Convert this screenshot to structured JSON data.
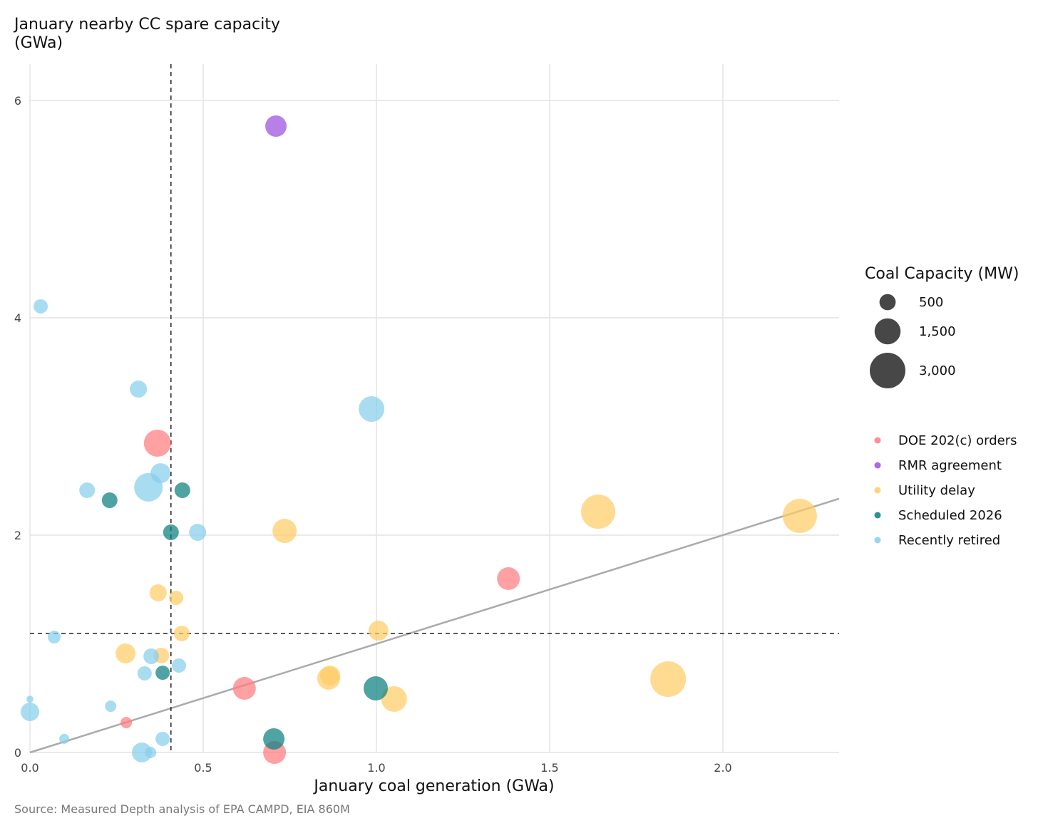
{
  "chart_data": {
    "type": "scatter",
    "title": "January nearby CC spare capacity",
    "title_line2": "(GWa)",
    "xlabel": "January coal generation (GWa)",
    "ylabel": "January nearby CC spare capacity (GWa)",
    "source": "Source: Measured Depth analysis of EPA CAMPD, EIA 860M",
    "xlim": [
      0,
      2.335
    ],
    "ylim": [
      0,
      6.33
    ],
    "x_ticks": [
      0,
      0.5,
      1.0,
      1.5,
      2.0
    ],
    "x_tick_labels": [
      "0.0",
      "0.5",
      "1.0",
      "1.5",
      "2.0"
    ],
    "y_ticks": [
      0,
      2,
      4,
      6
    ],
    "y_tick_labels": [
      "0",
      "2",
      "4",
      "6"
    ],
    "grid": true,
    "reference_lines": {
      "vertical_x": 0.407,
      "horizontal_y": 1.095,
      "diagonal": "y = x"
    },
    "size_legend": {
      "title": "Coal Capacity (MW)",
      "values": [
        500,
        1500,
        3000
      ],
      "labels": [
        "500",
        "1,500",
        "3,000"
      ]
    },
    "legend_placement": "right",
    "series": [
      {
        "name": "DOE 202(c) orders",
        "color": "#FF7B80",
        "points": [
          [
            0.368,
            2.846,
            1640
          ],
          [
            1.381,
            1.6,
            1111
          ],
          [
            0.619,
            0.59,
            1111
          ],
          [
            0.278,
            0.275,
            204
          ],
          [
            0.706,
            0.0,
            1111
          ]
        ]
      },
      {
        "name": "RMR agreement",
        "color": "#9B4FE0",
        "points": [
          [
            0.71,
            5.764,
            958
          ]
        ]
      },
      {
        "name": "Utility delay",
        "color": "#FFCC66",
        "points": [
          [
            1.64,
            2.216,
            2744
          ],
          [
            2.222,
            2.177,
            2744
          ],
          [
            0.735,
            2.039,
            1276
          ],
          [
            0.37,
            1.469,
            567
          ],
          [
            0.422,
            1.423,
            363
          ],
          [
            0.438,
            1.095,
            459
          ],
          [
            1.006,
            1.121,
            816
          ],
          [
            0.276,
            0.911,
            816
          ],
          [
            0.379,
            0.892,
            459
          ],
          [
            0.862,
            0.682,
            1111
          ],
          [
            0.866,
            0.708,
            816
          ],
          [
            1.051,
            0.492,
            1451
          ],
          [
            1.842,
            0.675,
            3000
          ]
        ]
      },
      {
        "name": "Scheduled 2026",
        "color": "#0B7F7F",
        "points": [
          [
            0.23,
            2.321,
            459
          ],
          [
            0.44,
            2.413,
            459
          ],
          [
            0.407,
            2.026,
            459
          ],
          [
            0.383,
            0.734,
            363
          ],
          [
            0.998,
            0.59,
            1276
          ],
          [
            0.704,
            0.125,
            958
          ]
        ]
      },
      {
        "name": "Recently retired",
        "color": "#87CEEB",
        "points": [
          [
            0.031,
            4.105,
            363
          ],
          [
            0.313,
            3.344,
            567
          ],
          [
            0.986,
            3.161,
            1451
          ],
          [
            0.377,
            2.57,
            816
          ],
          [
            0.342,
            2.44,
            1837
          ],
          [
            0.165,
            2.413,
            459
          ],
          [
            0.484,
            2.026,
            567
          ],
          [
            0.07,
            1.062,
            278
          ],
          [
            0.35,
            0.885,
            459
          ],
          [
            0.331,
            0.728,
            363
          ],
          [
            0.43,
            0.8,
            363
          ],
          [
            0.233,
            0.426,
            204
          ],
          [
            0.0,
            0.49,
            51
          ],
          [
            0.0,
            0.374,
            686
          ],
          [
            0.099,
            0.125,
            142
          ],
          [
            0.383,
            0.125,
            363
          ],
          [
            0.323,
            0.0,
            816
          ],
          [
            0.348,
            0.0,
            204
          ]
        ]
      }
    ]
  }
}
